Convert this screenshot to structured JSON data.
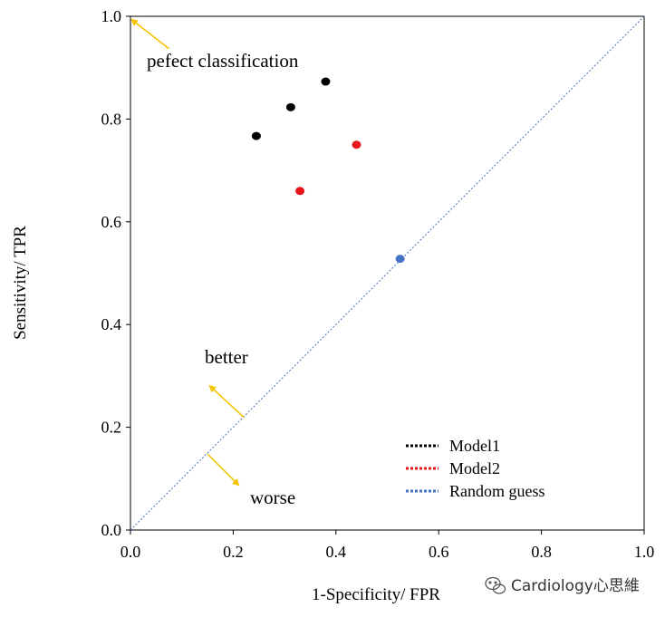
{
  "chart_data": {
    "type": "scatter",
    "title": "",
    "xlabel": "1-Specificity/  FPR",
    "ylabel": "Sensitivity/  TPR",
    "xlim": [
      0.0,
      1.0
    ],
    "ylim": [
      0.0,
      1.0
    ],
    "x_ticks": [
      "0.0",
      "0.2",
      "0.4",
      "0.6",
      "0.8",
      "1.0"
    ],
    "y_ticks": [
      "0.0",
      "0.2",
      "0.4",
      "0.6",
      "0.8",
      "1.0"
    ],
    "grid": false,
    "legend_position": "bottom-right",
    "series": [
      {
        "name": "Model1",
        "color": "#000000",
        "points": [
          {
            "x": 0.245,
            "y": 0.767
          },
          {
            "x": 0.312,
            "y": 0.823
          },
          {
            "x": 0.38,
            "y": 0.873
          }
        ]
      },
      {
        "name": "Model2",
        "color": "#e8161b",
        "points": [
          {
            "x": 0.33,
            "y": 0.66
          },
          {
            "x": 0.44,
            "y": 0.75
          }
        ]
      },
      {
        "name": "Random guess",
        "color": "#4472c4",
        "points": [
          {
            "x": 0.525,
            "y": 0.528
          }
        ],
        "diagonal": true
      }
    ],
    "annotations": [
      {
        "text": "pefect classification",
        "arrow_from": [
          0.075,
          0.937
        ],
        "arrow_to": [
          0.003,
          0.993
        ]
      },
      {
        "text": "better",
        "arrow_from": [
          0.22,
          0.22
        ],
        "arrow_to": [
          0.155,
          0.28
        ]
      },
      {
        "text": "worse",
        "arrow_from": [
          0.15,
          0.148
        ],
        "arrow_to": [
          0.21,
          0.088
        ]
      }
    ],
    "annotation_color": "#f5c400"
  },
  "watermark": {
    "text": "Cardiology心思維"
  }
}
